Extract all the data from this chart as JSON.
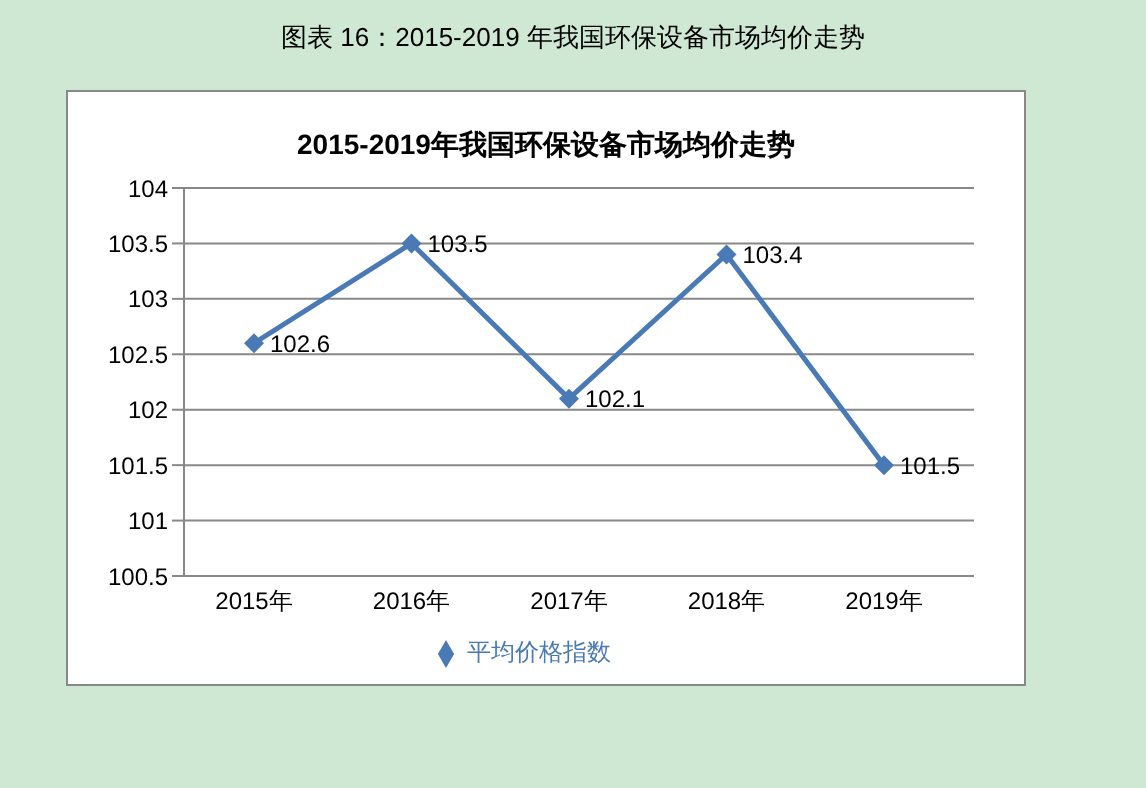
{
  "chart_data": {
    "type": "line",
    "title": "2015-2019年我国环保设备市场均价走势",
    "annotations": [
      "图表  16：2015-2019 年我国环保设备市场均价走势"
    ],
    "categories": [
      "2015年",
      "2016年",
      "2017年",
      "2018年",
      "2019年"
    ],
    "series": [
      {
        "name": "平均价格指数",
        "color": "#4a7ab5",
        "values": [
          102.6,
          103.5,
          102.1,
          103.4,
          101.5
        ]
      }
    ],
    "ylim": [
      100.5,
      104
    ],
    "yticks": [
      100.5,
      101,
      101.5,
      102,
      102.5,
      103,
      103.5,
      104
    ],
    "grid": "y",
    "legend": "bottom",
    "marker": "diamond",
    "line_style": "solid",
    "data_labels": true
  }
}
